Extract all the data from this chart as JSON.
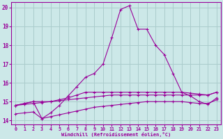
{
  "xlabel": "Windchill (Refroidissement éolien,°C)",
  "xlim": [
    -0.5,
    23.5
  ],
  "ylim": [
    13.8,
    20.3
  ],
  "xticks": [
    0,
    1,
    2,
    3,
    4,
    5,
    6,
    7,
    8,
    9,
    10,
    11,
    12,
    13,
    14,
    15,
    16,
    17,
    18,
    19,
    20,
    21,
    22,
    23
  ],
  "yticks": [
    14,
    15,
    16,
    17,
    18,
    19,
    20
  ],
  "bg_color": "#cce8e8",
  "grid_color": "#aacccc",
  "line_color": "#990099",
  "lines": [
    {
      "x": [
        0,
        1,
        2,
        3,
        4,
        5,
        6,
        7,
        8,
        9,
        10,
        11,
        12,
        13,
        14,
        15,
        16,
        17,
        18,
        19,
        20,
        21,
        22,
        23
      ],
      "y": [
        14.8,
        14.9,
        15.0,
        14.1,
        14.4,
        14.8,
        15.3,
        15.8,
        16.3,
        16.5,
        17.0,
        18.4,
        19.9,
        20.1,
        18.85,
        18.85,
        18.0,
        17.5,
        16.5,
        15.5,
        15.3,
        15.0,
        14.85,
        15.2
      ]
    },
    {
      "x": [
        0,
        1,
        2,
        3,
        4,
        5,
        6,
        7,
        8,
        9,
        10,
        11,
        12,
        13,
        14,
        15,
        16,
        17,
        18,
        19,
        20,
        21,
        22,
        23
      ],
      "y": [
        14.8,
        14.9,
        15.0,
        15.0,
        15.0,
        15.1,
        15.2,
        15.35,
        15.5,
        15.5,
        15.5,
        15.5,
        15.5,
        15.5,
        15.5,
        15.5,
        15.5,
        15.5,
        15.5,
        15.5,
        15.45,
        15.4,
        15.35,
        15.5
      ]
    },
    {
      "x": [
        0,
        1,
        2,
        3,
        4,
        5,
        6,
        7,
        8,
        9,
        10,
        11,
        12,
        13,
        14,
        15,
        16,
        17,
        18,
        19,
        20,
        21,
        22,
        23
      ],
      "y": [
        14.8,
        14.85,
        14.9,
        14.95,
        15.0,
        15.05,
        15.1,
        15.15,
        15.2,
        15.25,
        15.3,
        15.35,
        15.35,
        15.35,
        15.35,
        15.35,
        15.35,
        15.35,
        15.35,
        15.35,
        15.35,
        15.35,
        15.35,
        15.5
      ]
    },
    {
      "x": [
        0,
        1,
        2,
        3,
        4,
        5,
        6,
        7,
        8,
        9,
        10,
        11,
        12,
        13,
        14,
        15,
        16,
        17,
        18,
        19,
        20,
        21,
        22,
        23
      ],
      "y": [
        14.35,
        14.4,
        14.45,
        14.1,
        14.2,
        14.3,
        14.4,
        14.5,
        14.6,
        14.7,
        14.75,
        14.8,
        14.85,
        14.9,
        14.95,
        15.0,
        15.0,
        15.0,
        15.0,
        15.0,
        14.95,
        14.9,
        14.9,
        15.1
      ]
    }
  ]
}
